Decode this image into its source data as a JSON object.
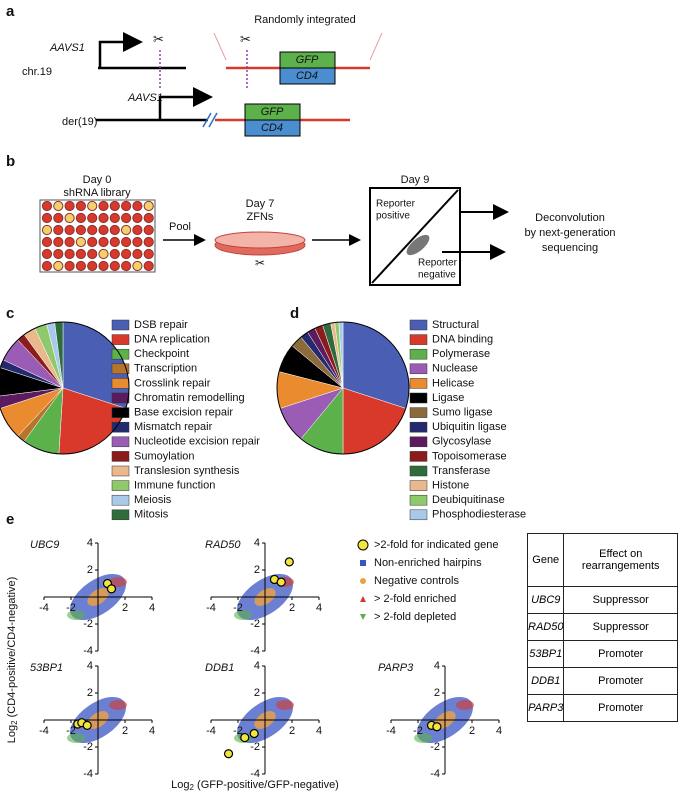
{
  "panel_a": {
    "label": "a",
    "gene": "AAVS1",
    "chr": "chr.19",
    "random": "Randomly integrated",
    "gfp": "GFP",
    "cd4": "CD4",
    "der": "der(19)"
  },
  "panel_b": {
    "label": "b",
    "day0": "Day 0",
    "library": "shRNA library",
    "pool": "Pool",
    "day7": "Day 7",
    "zfns": "ZFNs",
    "day9": "Day 9",
    "pos1": "Reporter",
    "pos2": "positive",
    "neg1": "Reporter",
    "neg2": "negative",
    "out1": "Deconvolution",
    "out2": "by next-generation",
    "out3": "sequencing"
  },
  "panel_c": {
    "label": "c"
  },
  "panel_d": {
    "label": "d"
  },
  "panel_e": {
    "label": "e",
    "legend": [
      ">2-fold for indicated gene",
      "Non-enriched hairpins",
      "Negative controls",
      "> 2-fold enriched",
      "> 2-fold depleted"
    ],
    "ylabel": [
      "Log",
      "2",
      " (CD4-positive/CD4-negative)"
    ],
    "xlabel": [
      "Log",
      "2",
      " (GFP-positive/GFP-negative)"
    ]
  },
  "table": {
    "header": [
      "Gene",
      "Effect on rearrangements"
    ],
    "rows": [
      [
        "UBC9",
        "Suppressor"
      ],
      [
        "RAD50",
        "Suppressor"
      ],
      [
        "53BP1",
        "Promoter"
      ],
      [
        "DDB1",
        "Promoter"
      ],
      [
        "PARP3",
        "Promoter"
      ]
    ]
  },
  "chart_data": [
    {
      "type": "pie",
      "categories": [
        "DSB repair",
        "DNA replication",
        "Checkpoint",
        "Transcription",
        "Crosslink repair",
        "Chromatin remodelling",
        "Base excision repair",
        "Mismatch repair",
        "Nucleotide excision repair",
        "Sumoylation",
        "Translesion synthesis",
        "Immune function",
        "Meiosis",
        "Mitosis"
      ],
      "values": [
        30,
        21,
        9,
        2,
        8,
        3,
        7,
        2,
        6,
        2,
        3,
        3,
        2,
        2
      ],
      "colors": [
        "#4a5fb3",
        "#d8392b",
        "#5cb14b",
        "#b7742d",
        "#ea8b2f",
        "#5b1b5e",
        "#000000",
        "#242a6d",
        "#9a5cb5",
        "#8c1c1c",
        "#eab98b",
        "#8fc96b",
        "#a9c9e9",
        "#2f6c3b"
      ]
    },
    {
      "type": "pie",
      "categories": [
        "Structural",
        "DNA binding",
        "Polymerase",
        "Nuclease",
        "Helicase",
        "Ligase",
        "Sumo ligase",
        "Ubiquitin ligase",
        "Glycosylase",
        "Topoisomerase",
        "Transferase",
        "Histone",
        "Deubiquitinase",
        "Phosphodiesterase"
      ],
      "values": [
        30,
        20,
        11,
        9,
        9,
        7,
        3,
        2,
        2,
        2,
        2,
        1,
        1,
        1
      ],
      "colors": [
        "#4a5fb3",
        "#d8392b",
        "#5cb14b",
        "#9a5cb5",
        "#ea8b2f",
        "#000000",
        "#8c6a3a",
        "#242a6d",
        "#5b1b5e",
        "#8c1c1c",
        "#2f6c3b",
        "#eab98b",
        "#8fc96b",
        "#a9c9e9"
      ]
    },
    {
      "type": "scatter",
      "title": "UBC9",
      "x": [
        0.7,
        1.0
      ],
      "values": [
        1.0,
        0.6
      ],
      "xlim": [
        -4,
        4
      ],
      "ylim": [
        -4,
        4
      ],
      "xticks": [
        -4,
        -2,
        2,
        4
      ],
      "yticks": [
        -4,
        -2,
        2,
        4
      ],
      "color": "#f2e53c"
    },
    {
      "type": "scatter",
      "title": "RAD50",
      "x": [
        0.7,
        1.2,
        1.8
      ],
      "values": [
        1.3,
        1.1,
        2.6
      ],
      "xlim": [
        -4,
        4
      ],
      "ylim": [
        -4,
        4
      ],
      "xticks": [
        -4,
        -2,
        2,
        4
      ],
      "yticks": [
        -4,
        -2,
        2,
        4
      ],
      "color": "#f2e53c"
    },
    {
      "type": "scatter",
      "title": "53BP1",
      "x": [
        -1.5,
        -1.2,
        -0.8
      ],
      "values": [
        -0.3,
        -0.2,
        -0.4
      ],
      "xlim": [
        -4,
        4
      ],
      "ylim": [
        -4,
        4
      ],
      "xticks": [
        -4,
        -2,
        2,
        4
      ],
      "yticks": [
        -4,
        -2,
        2,
        4
      ],
      "color": "#f2e53c"
    },
    {
      "type": "scatter",
      "title": "DDB1",
      "x": [
        -2.7,
        -1.5,
        -0.8
      ],
      "values": [
        -2.5,
        -1.3,
        -1.0
      ],
      "xlim": [
        -4,
        4
      ],
      "ylim": [
        -4,
        4
      ],
      "xticks": [
        -4,
        -2,
        2,
        4
      ],
      "yticks": [
        -4,
        -2,
        2,
        4
      ],
      "color": "#f2e53c"
    },
    {
      "type": "scatter",
      "title": "PARP3",
      "x": [
        -1.0,
        -0.6
      ],
      "values": [
        -0.4,
        -0.5
      ],
      "xlim": [
        -4,
        4
      ],
      "ylim": [
        -4,
        4
      ],
      "xticks": [
        -4,
        -2,
        2,
        4
      ],
      "yticks": [
        -4,
        -2,
        2,
        4
      ],
      "color": "#f2e53c"
    }
  ]
}
